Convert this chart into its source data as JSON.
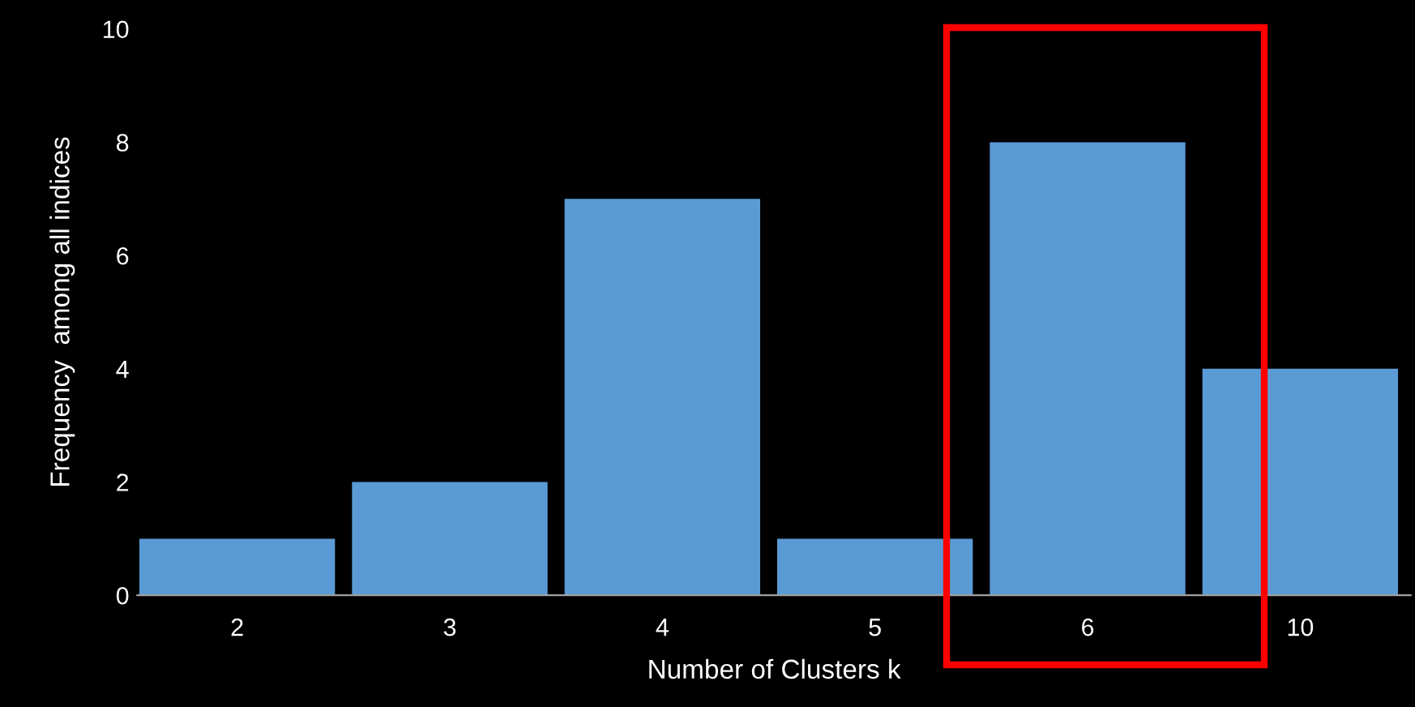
{
  "chart_data": {
    "type": "bar",
    "xlabel": "Number of Clusters k",
    "ylabel": "Frequency  among all indices",
    "categories": [
      "2",
      "3",
      "4",
      "5",
      "6",
      "10"
    ],
    "values": [
      1,
      2,
      7,
      1,
      8,
      4
    ],
    "color": "#5b9bd5",
    "ylim": [
      0,
      10
    ],
    "yticks": [
      0,
      2,
      4,
      6,
      8,
      10
    ],
    "grid": false
  }
}
